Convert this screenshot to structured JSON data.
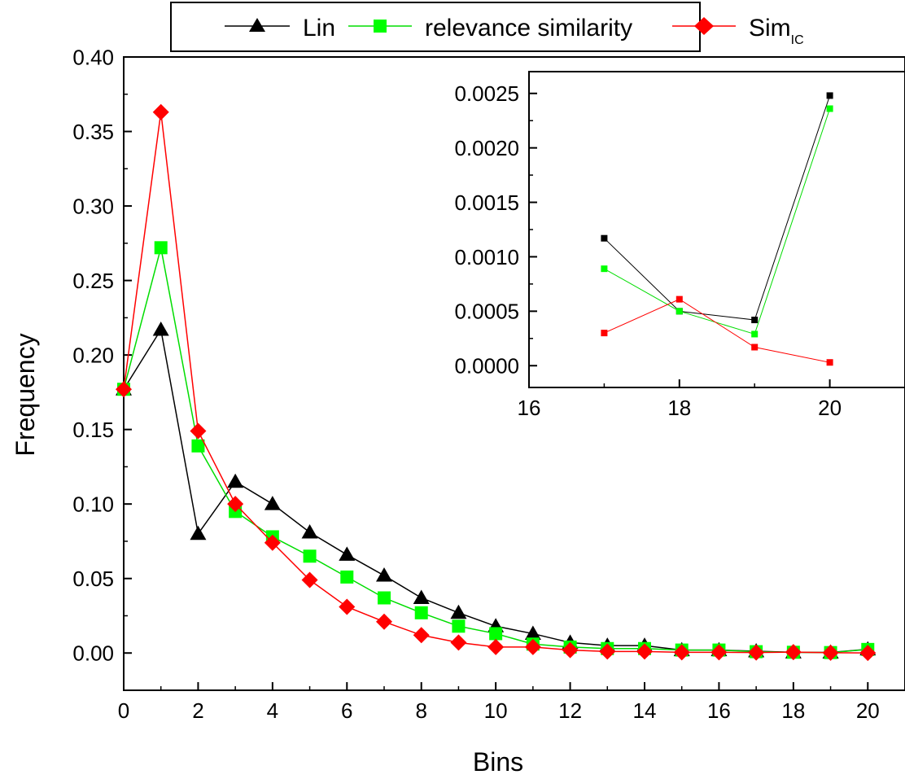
{
  "chart_data": [
    {
      "type": "line",
      "title": "",
      "xlabel": "Bins",
      "ylabel": "Frequency",
      "xlim": [
        0,
        21
      ],
      "ylim": [
        -0.025,
        0.4
      ],
      "xticks": [
        0,
        2,
        4,
        6,
        8,
        10,
        12,
        14,
        16,
        18,
        20
      ],
      "yticks": [
        0.0,
        0.05,
        0.1,
        0.15,
        0.2,
        0.25,
        0.3,
        0.35,
        0.4
      ],
      "xtick_labels": [
        "0",
        "2",
        "4",
        "6",
        "8",
        "10",
        "12",
        "14",
        "16",
        "18",
        "20"
      ],
      "ytick_labels": [
        "0.00",
        "0.05",
        "0.10",
        "0.15",
        "0.20",
        "0.25",
        "0.30",
        "0.35",
        "0.40"
      ],
      "legend_position": "top",
      "x": [
        0,
        1,
        2,
        3,
        4,
        5,
        6,
        7,
        8,
        9,
        10,
        11,
        12,
        13,
        14,
        15,
        16,
        17,
        18,
        19,
        20
      ],
      "series": [
        {
          "name": "Lin",
          "color": "#000000",
          "marker": "triangle",
          "values": [
            0.177,
            0.217,
            0.08,
            0.115,
            0.1,
            0.081,
            0.066,
            0.052,
            0.037,
            0.027,
            0.018,
            0.013,
            0.007,
            0.005,
            0.005,
            0.002,
            0.002,
            0.0012,
            0.0005,
            0.0004,
            0.0025
          ]
        },
        {
          "name": "relevance similarity",
          "color": "#00dd00",
          "marker": "square",
          "values": [
            0.177,
            0.272,
            0.139,
            0.095,
            0.078,
            0.065,
            0.051,
            0.037,
            0.027,
            0.018,
            0.013,
            0.006,
            0.004,
            0.003,
            0.003,
            0.002,
            0.002,
            0.0009,
            0.0005,
            0.0003,
            0.0024
          ]
        },
        {
          "name": "Sim",
          "name_subscript": "IC",
          "color": "#ff0000",
          "marker": "diamond",
          "values": [
            0.177,
            0.363,
            0.149,
            0.1,
            0.074,
            0.049,
            0.031,
            0.021,
            0.012,
            0.007,
            0.004,
            0.004,
            0.002,
            0.001,
            0.001,
            0.0005,
            0.0005,
            0.0003,
            0.0006,
            0.0002,
            3e-05
          ]
        }
      ]
    },
    {
      "type": "line",
      "title": "",
      "xlabel": "",
      "ylabel": "",
      "xlim": [
        16,
        21
      ],
      "ylim": [
        -0.0002,
        0.0027
      ],
      "xticks": [
        16,
        18,
        20
      ],
      "yticks": [
        0.0,
        0.0005,
        0.001,
        0.0015,
        0.002,
        0.0025
      ],
      "xtick_labels": [
        "16",
        "18",
        "20"
      ],
      "ytick_labels": [
        "0.0000",
        "0.0005",
        "0.0010",
        "0.0015",
        "0.0020",
        "0.0025"
      ],
      "x": [
        17,
        18,
        19,
        20
      ],
      "series": [
        {
          "color": "#000000",
          "values": [
            0.00117,
            0.0005,
            0.00042,
            0.00248
          ]
        },
        {
          "color": "#00dd00",
          "values": [
            0.00089,
            0.0005,
            0.00029,
            0.00236
          ]
        },
        {
          "color": "#ff0000",
          "values": [
            0.0003,
            0.00061,
            0.00017,
            3e-05
          ]
        }
      ]
    }
  ]
}
